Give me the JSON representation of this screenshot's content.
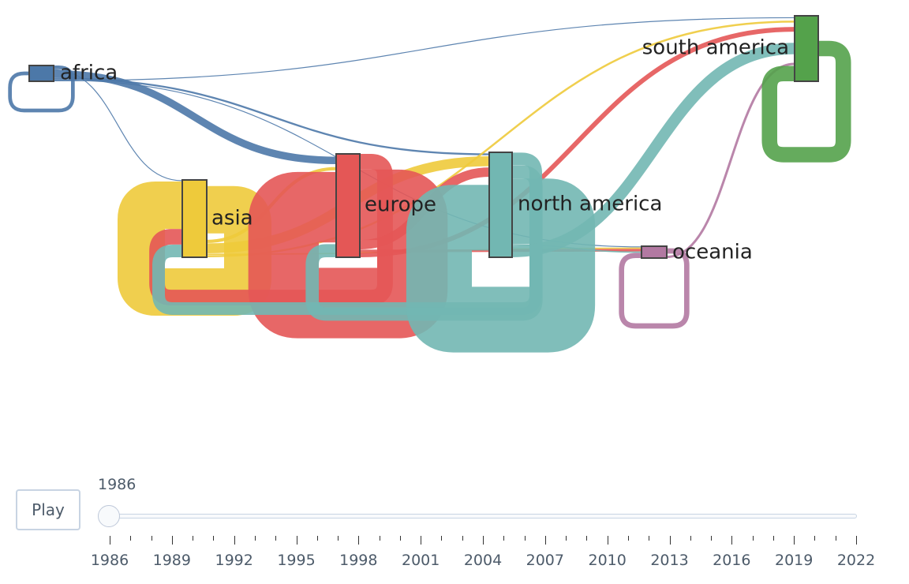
{
  "chart_data": {
    "type": "sankey",
    "nodes": [
      {
        "id": "africa",
        "label": "africa",
        "color": "#4c78a8"
      },
      {
        "id": "asia",
        "label": "asia",
        "color": "#eeca3b"
      },
      {
        "id": "europe",
        "label": "europe",
        "color": "#e45756"
      },
      {
        "id": "north_america",
        "label": "north america",
        "color": "#72b7b2"
      },
      {
        "id": "oceania",
        "label": "oceania",
        "color": "#b279a2"
      },
      {
        "id": "south_america",
        "label": "south america",
        "color": "#54a24b"
      }
    ],
    "links": [
      {
        "source": "africa",
        "target": "africa",
        "value": 4
      },
      {
        "source": "africa",
        "target": "asia",
        "value": 1
      },
      {
        "source": "africa",
        "target": "europe",
        "value": 8
      },
      {
        "source": "africa",
        "target": "north_america",
        "value": 2
      },
      {
        "source": "africa",
        "target": "oceania",
        "value": 1
      },
      {
        "source": "africa",
        "target": "south_america",
        "value": 1
      },
      {
        "source": "asia",
        "target": "asia",
        "value": 30
      },
      {
        "source": "asia",
        "target": "europe",
        "value": 2
      },
      {
        "source": "asia",
        "target": "north_america",
        "value": 5
      },
      {
        "source": "asia",
        "target": "oceania",
        "value": 1
      },
      {
        "source": "asia",
        "target": "south_america",
        "value": 1
      },
      {
        "source": "europe",
        "target": "asia",
        "value": 10
      },
      {
        "source": "europe",
        "target": "europe",
        "value": 45
      },
      {
        "source": "europe",
        "target": "north_america",
        "value": 6
      },
      {
        "source": "europe",
        "target": "oceania",
        "value": 2
      },
      {
        "source": "europe",
        "target": "south_america",
        "value": 3
      },
      {
        "source": "north_america",
        "target": "asia",
        "value": 8
      },
      {
        "source": "north_america",
        "target": "europe",
        "value": 8
      },
      {
        "source": "north_america",
        "target": "north_america",
        "value": 40
      },
      {
        "source": "north_america",
        "target": "oceania",
        "value": 1
      },
      {
        "source": "north_america",
        "target": "south_america",
        "value": 7
      },
      {
        "source": "oceania",
        "target": "oceania",
        "value": 4
      },
      {
        "source": "oceania",
        "target": "south_america",
        "value": 1
      },
      {
        "source": "south_america",
        "target": "south_america",
        "value": 4
      }
    ]
  },
  "controls": {
    "play_label": "Play",
    "current_value": "1986",
    "slider_position": 0,
    "tick_labels": [
      "1986",
      "1989",
      "1992",
      "1995",
      "1998",
      "2001",
      "2004",
      "2007",
      "2010",
      "2013",
      "2016",
      "2019",
      "2022"
    ]
  }
}
